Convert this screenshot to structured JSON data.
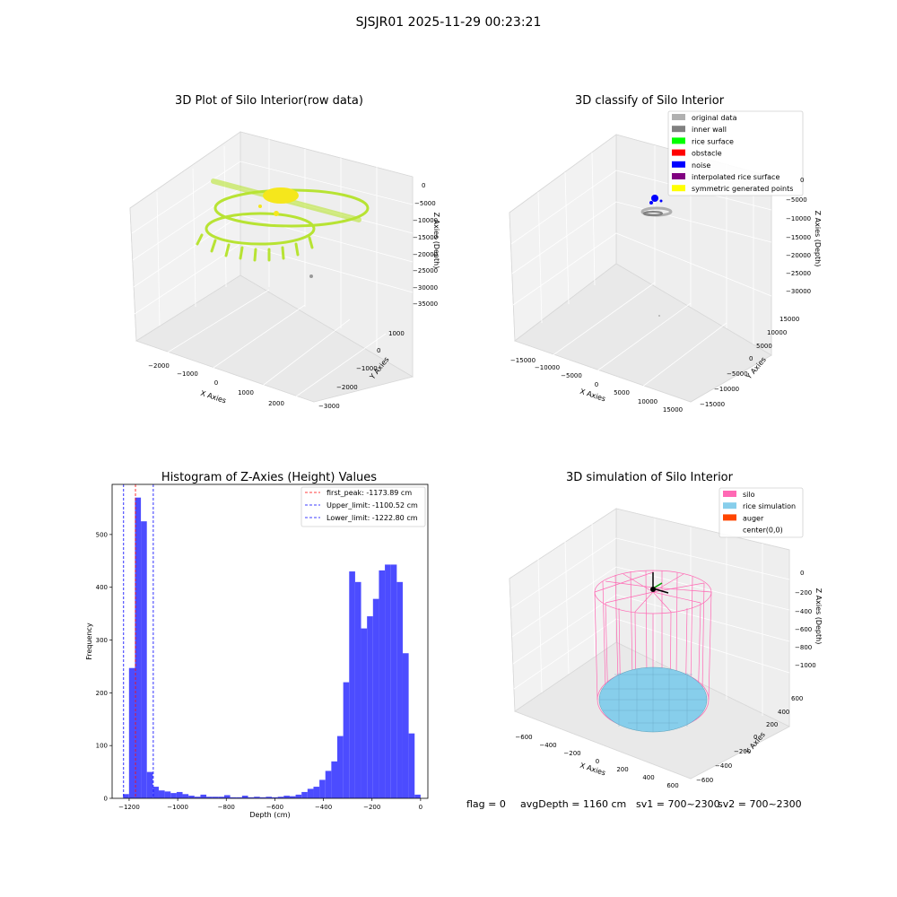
{
  "suptitle": "SJSJR01 2025-11-29 00:23:21",
  "status": {
    "flag": "flag = 0",
    "avg_depth": "avgDepth = 1160 cm",
    "sv1": "sv1 = 700~2300",
    "sv2": "sv2 = 700~2300"
  },
  "colors": {
    "raw_points": "#b5e32a",
    "yellow": "#f5e71c",
    "hist_bar": "#4c4cff",
    "first_peak_line": "#ff0000",
    "limit_lines": "#0000ff",
    "silo": "#ff69b4",
    "rice": "#87ceeb",
    "auger": "#ff4500"
  },
  "chart_data": [
    {
      "type": "scatter3d",
      "title": "3D Plot of Silo Interior(row data)",
      "xlabel": "X Axies",
      "ylabel": "Y Axies",
      "zlabel": "Z Axies (Depth)",
      "x_ticks": [
        "−2000",
        "−1000",
        "0",
        "1000",
        "2000"
      ],
      "y_ticks": [
        "−3000",
        "−2000",
        "−1000",
        "0",
        "1000"
      ],
      "z_ticks": [
        "0",
        "−5000",
        "−10000",
        "−15000",
        "−20000",
        "−25000",
        "−30000",
        "−35000"
      ]
    },
    {
      "type": "scatter3d",
      "title": "3D classify of Silo Interior",
      "xlabel": "X Axies",
      "ylabel": "Y Axies",
      "zlabel": "Z Axies (Depth)",
      "x_ticks": [
        "−15000",
        "−10000",
        "−5000",
        "0",
        "5000",
        "10000",
        "15000"
      ],
      "y_ticks": [
        "−15000",
        "−10000",
        "−5000",
        "0",
        "5000",
        "10000",
        "15000"
      ],
      "z_ticks": [
        "0",
        "−5000",
        "−10000",
        "−15000",
        "−20000",
        "−25000",
        "−30000"
      ],
      "legend_position": "top-right",
      "legend": [
        {
          "label": "original data",
          "color": "#b0b0b0"
        },
        {
          "label": "inner wall",
          "color": "#808080"
        },
        {
          "label": "rice surface",
          "color": "#00ff00"
        },
        {
          "label": "obstacle",
          "color": "#ff0000"
        },
        {
          "label": "noise",
          "color": "#0000ff"
        },
        {
          "label": "interpolated rice surface",
          "color": "#800080"
        },
        {
          "label": "symmetric generated points",
          "color": "#ffff00"
        }
      ]
    },
    {
      "type": "bar",
      "title": "Histogram of Z-Axies (Height) Values",
      "xlabel": "Depth (cm)",
      "ylabel": "Frequency",
      "xlim": [
        -1270,
        30
      ],
      "ylim": [
        0,
        595
      ],
      "bin_width": 24.5,
      "x_ticks": [
        -1200,
        -1000,
        -800,
        -600,
        -400,
        -200,
        0
      ],
      "x_tick_labels": [
        "−1200",
        "−1000",
        "−800",
        "−600",
        "−400",
        "−200",
        "0"
      ],
      "y_ticks": [
        0,
        100,
        200,
        300,
        400,
        500
      ],
      "y_tick_labels": [
        "0",
        "100",
        "200",
        "300",
        "400",
        "500"
      ],
      "bins": [
        {
          "x": -1225,
          "value": 8
        },
        {
          "x": -1200.5,
          "value": 247
        },
        {
          "x": -1176,
          "value": 570
        },
        {
          "x": -1151.5,
          "value": 525
        },
        {
          "x": -1127,
          "value": 50
        },
        {
          "x": -1102.5,
          "value": 22
        },
        {
          "x": -1078,
          "value": 15
        },
        {
          "x": -1053.5,
          "value": 13
        },
        {
          "x": -1029,
          "value": 10
        },
        {
          "x": -1004.5,
          "value": 12
        },
        {
          "x": -980,
          "value": 8
        },
        {
          "x": -955.5,
          "value": 5
        },
        {
          "x": -931,
          "value": 3
        },
        {
          "x": -906.5,
          "value": 7
        },
        {
          "x": -882,
          "value": 3
        },
        {
          "x": -857.5,
          "value": 3
        },
        {
          "x": -833,
          "value": 3
        },
        {
          "x": -808.5,
          "value": 6
        },
        {
          "x": -784,
          "value": 2
        },
        {
          "x": -759.5,
          "value": 2
        },
        {
          "x": -735,
          "value": 5
        },
        {
          "x": -710.5,
          "value": 2
        },
        {
          "x": -686,
          "value": 3
        },
        {
          "x": -661.5,
          "value": 2
        },
        {
          "x": -637,
          "value": 3
        },
        {
          "x": -612.5,
          "value": 2
        },
        {
          "x": -588,
          "value": 3
        },
        {
          "x": -563.5,
          "value": 5
        },
        {
          "x": -539,
          "value": 4
        },
        {
          "x": -514.5,
          "value": 7
        },
        {
          "x": -490,
          "value": 12
        },
        {
          "x": -465.5,
          "value": 18
        },
        {
          "x": -441,
          "value": 22
        },
        {
          "x": -416.5,
          "value": 35
        },
        {
          "x": -392,
          "value": 52
        },
        {
          "x": -367.5,
          "value": 70
        },
        {
          "x": -343,
          "value": 118
        },
        {
          "x": -318.5,
          "value": 220
        },
        {
          "x": -294,
          "value": 430
        },
        {
          "x": -269.5,
          "value": 410
        },
        {
          "x": -245,
          "value": 322
        },
        {
          "x": -220.5,
          "value": 345
        },
        {
          "x": -196,
          "value": 378
        },
        {
          "x": -171.5,
          "value": 432
        },
        {
          "x": -147,
          "value": 443
        },
        {
          "x": -122.5,
          "value": 443
        },
        {
          "x": -98,
          "value": 410
        },
        {
          "x": -73.5,
          "value": 275
        },
        {
          "x": -49,
          "value": 123
        },
        {
          "x": -24.5,
          "value": 7
        }
      ],
      "vlines": [
        {
          "x": -1173.89,
          "label": "first_peak: -1173.89 cm",
          "color": "#ff0000"
        },
        {
          "x": -1100.52,
          "label": "Upper_limit: -1100.52 cm",
          "color": "#0000ff"
        },
        {
          "x": -1222.8,
          "label": "Lower_limit: -1222.80 cm",
          "color": "#0000ff"
        }
      ],
      "legend_position": "top-right"
    },
    {
      "type": "surface3d",
      "title": "3D simulation of Silo Interior",
      "xlabel": "X Axies",
      "ylabel": "Y Axies",
      "zlabel": "Z Axies (Depth)",
      "x_ticks": [
        "−600",
        "−400",
        "−200",
        "0",
        "200",
        "400",
        "600"
      ],
      "y_ticks": [
        "−600",
        "−400",
        "−200",
        "0",
        "200",
        "400",
        "600"
      ],
      "z_ticks": [
        "0",
        "−200",
        "−400",
        "−600",
        "−800",
        "−1000"
      ],
      "legend_position": "top-right",
      "legend": [
        {
          "label": "silo",
          "color": "#ff69b4"
        },
        {
          "label": "rice simulation",
          "color": "#87ceeb"
        },
        {
          "label": "auger",
          "color": "#ff4500"
        },
        {
          "label": "center(0,0)",
          "color": ""
        }
      ]
    }
  ]
}
